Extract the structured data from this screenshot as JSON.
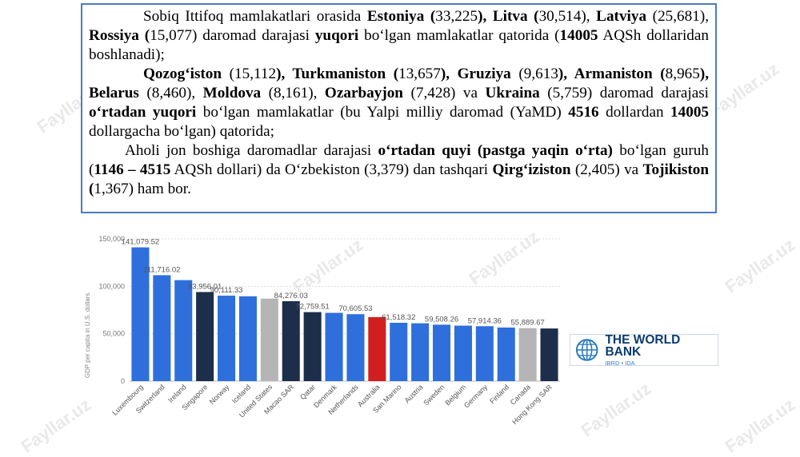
{
  "watermark": "Fayllar.uz",
  "paragraphs": [
    {
      "cls": "indent",
      "runs": [
        {
          "t": "Sobiq Ittifoq mamlakatlari orasida ",
          "b": false
        },
        {
          "t": "Estoniya (",
          "b": true
        },
        {
          "t": "33,225",
          "b": false
        },
        {
          "t": "), Litva (",
          "b": true
        },
        {
          "t": "30,514), ",
          "b": false
        },
        {
          "t": "Latviya",
          "b": true
        },
        {
          "t": " (25,681), ",
          "b": false
        },
        {
          "t": "Rossiya (",
          "b": true
        },
        {
          "t": "15,077) daromad darajasi ",
          "b": false
        },
        {
          "t": "yuqori",
          "b": true
        },
        {
          "t": " bo‘lgan mamlakatlar qatorida (",
          "b": false
        },
        {
          "t": "14005",
          "b": true
        },
        {
          "t": " AQSh dollaridan boshlanadi);",
          "b": false
        }
      ]
    },
    {
      "cls": "indent",
      "runs": [
        {
          "t": "Qozog‘iston",
          "b": true
        },
        {
          "t": " (15,112",
          "b": false
        },
        {
          "t": "), Turkmaniston (",
          "b": true
        },
        {
          "t": "13,657",
          "b": false
        },
        {
          "t": "), Gruziya",
          "b": true
        },
        {
          "t": " (9,613",
          "b": false
        },
        {
          "t": "), Armaniston (",
          "b": true
        },
        {
          "t": "8,965",
          "b": false
        },
        {
          "t": "), Belarus",
          "b": true
        },
        {
          "t": " (8,460), ",
          "b": false
        },
        {
          "t": "Moldova",
          "b": true
        },
        {
          "t": " (8,161), ",
          "b": false
        },
        {
          "t": "Ozarbayjon",
          "b": true
        },
        {
          "t": " (7,428) va ",
          "b": false
        },
        {
          "t": "Ukraina",
          "b": true
        },
        {
          "t": " (5,759) daromad darajasi ",
          "b": false
        },
        {
          "t": "o‘rtadan yuqori",
          "b": true
        },
        {
          "t": " bo‘lgan mamlakatlar (bu Yalpi milliy daromad (YaMD) ",
          "b": false
        },
        {
          "t": "4516",
          "b": true
        },
        {
          "t": " dollardan ",
          "b": false
        },
        {
          "t": "14005",
          "b": true
        },
        {
          "t": " dollargacha bo‘lgan) qatorida;",
          "b": false
        }
      ]
    },
    {
      "cls": "indent2",
      "runs": [
        {
          "t": "Aholi jon boshiga daromadlar darajasi ",
          "b": false
        },
        {
          "t": "o‘rtadan quyi (pastga yaqin o‘rta)",
          "b": true
        },
        {
          "t": " bo‘lgan guruh (",
          "b": false
        },
        {
          "t": "1146 – 4515",
          "b": true
        },
        {
          "t": " AQSh dollari) da O‘zbekiston (3,379) dan tashqari ",
          "b": false
        },
        {
          "t": "Qirg‘iziston",
          "b": true
        },
        {
          "t": " (2,405) va ",
          "b": false
        },
        {
          "t": "Tojikiston (",
          "b": true
        },
        {
          "t": "1,367) ham bor.",
          "b": false
        }
      ]
    }
  ],
  "chart_data": {
    "type": "bar",
    "title": "",
    "xlabel": "",
    "ylabel": "GDP per capita in U.S. dollars",
    "ylim": [
      0,
      150000
    ],
    "yticks": [
      "0",
      "50,000",
      "100,000",
      "150,000"
    ],
    "ytick_values": [
      0,
      50000,
      100000,
      150000
    ],
    "grid": true,
    "categories": [
      "Luxembourg",
      "Switzerland",
      "Ireland",
      "Singapore",
      "Norway",
      "Iceland",
      "United States",
      "Macao SAR",
      "Qatar",
      "Denmark",
      "Netherlands",
      "Australia",
      "San Marino",
      "Austria",
      "Sweden",
      "Belgium",
      "Germany",
      "Finland",
      "Canada",
      "Hong Kong SAR"
    ],
    "values": [
      141079.52,
      111716.02,
      106500,
      93956.01,
      90111.33,
      89500,
      87000,
      84276.03,
      72759.51,
      72000,
      70605.53,
      67500,
      61518.32,
      61000,
      59508.26,
      58500,
      57914.36,
      56500,
      55889.67,
      55500
    ],
    "data_labels": [
      "141,079.52",
      "111,716.02",
      "",
      "93,956.01",
      "90,111.33",
      "",
      "",
      "84,276.03",
      "72,759.51",
      "",
      "70,605.53",
      "",
      "61,518.32",
      "",
      "59,508.26",
      "",
      "57,914.36",
      "",
      "55,889.67",
      ""
    ],
    "bar_colors": [
      "#2f6fdc",
      "#2f6fdc",
      "#2f6fdc",
      "#1c2e4a",
      "#2f6fdc",
      "#2f6fdc",
      "#b5b5b5",
      "#1c2e4a",
      "#1c2e4a",
      "#2f6fdc",
      "#2f6fdc",
      "#d11f1f",
      "#2f6fdc",
      "#2f6fdc",
      "#2f6fdc",
      "#2f6fdc",
      "#2f6fdc",
      "#2f6fdc",
      "#b5b5b5",
      "#1c2e4a"
    ]
  },
  "logo": {
    "name": "THE WORLD BANK",
    "sub": "IBRD • IDA",
    "icon": "globe-icon"
  }
}
